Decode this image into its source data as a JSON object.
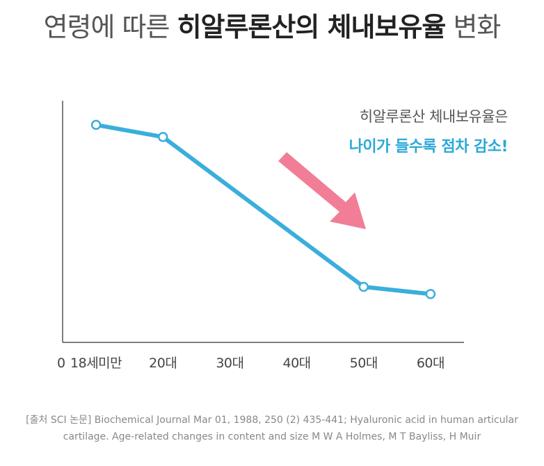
{
  "title": {
    "prefix": "연령에 따른",
    "emphasis": "히알루론산의 체내보유율",
    "suffix": "변화"
  },
  "annotation": {
    "line1": "히알루론산 체내보유율은",
    "line2": "나이가 들수록 점차 감소!"
  },
  "source": {
    "line1": "[출처 SCI 논문] Biochemical Journal Mar 01, 1988,  250 (2) 435-441; Hyaluronic acid in human articular",
    "line2": "cartilage. Age-related changes in content and size  M W A Holmes, M T Bayliss, H Muir"
  },
  "colors": {
    "line": "#3aaedc",
    "arrow": "#f27d97",
    "axis": "#555555",
    "accent_text": "#2ba8d8"
  },
  "chart_data": {
    "type": "line",
    "title": "연령에 따른 히알루론산의 체내보유율 변화",
    "origin_label": "0",
    "categories": [
      "18세미만",
      "20대",
      "30대",
      "40대",
      "50대",
      "60대"
    ],
    "x_positions": [
      0.5,
      1.5,
      2.5,
      3.5,
      4.5,
      5.5
    ],
    "series": [
      {
        "name": "히알루론산 체내보유율",
        "points": [
          {
            "x": 0.5,
            "y": 90
          },
          {
            "x": 1.5,
            "y": 85
          },
          {
            "x": 4.5,
            "y": 23
          },
          {
            "x": 5.5,
            "y": 20
          }
        ]
      }
    ],
    "xlim": [
      0,
      6
    ],
    "ylim": [
      0,
      100
    ],
    "xlabel": "",
    "ylabel": "",
    "grid": false
  }
}
